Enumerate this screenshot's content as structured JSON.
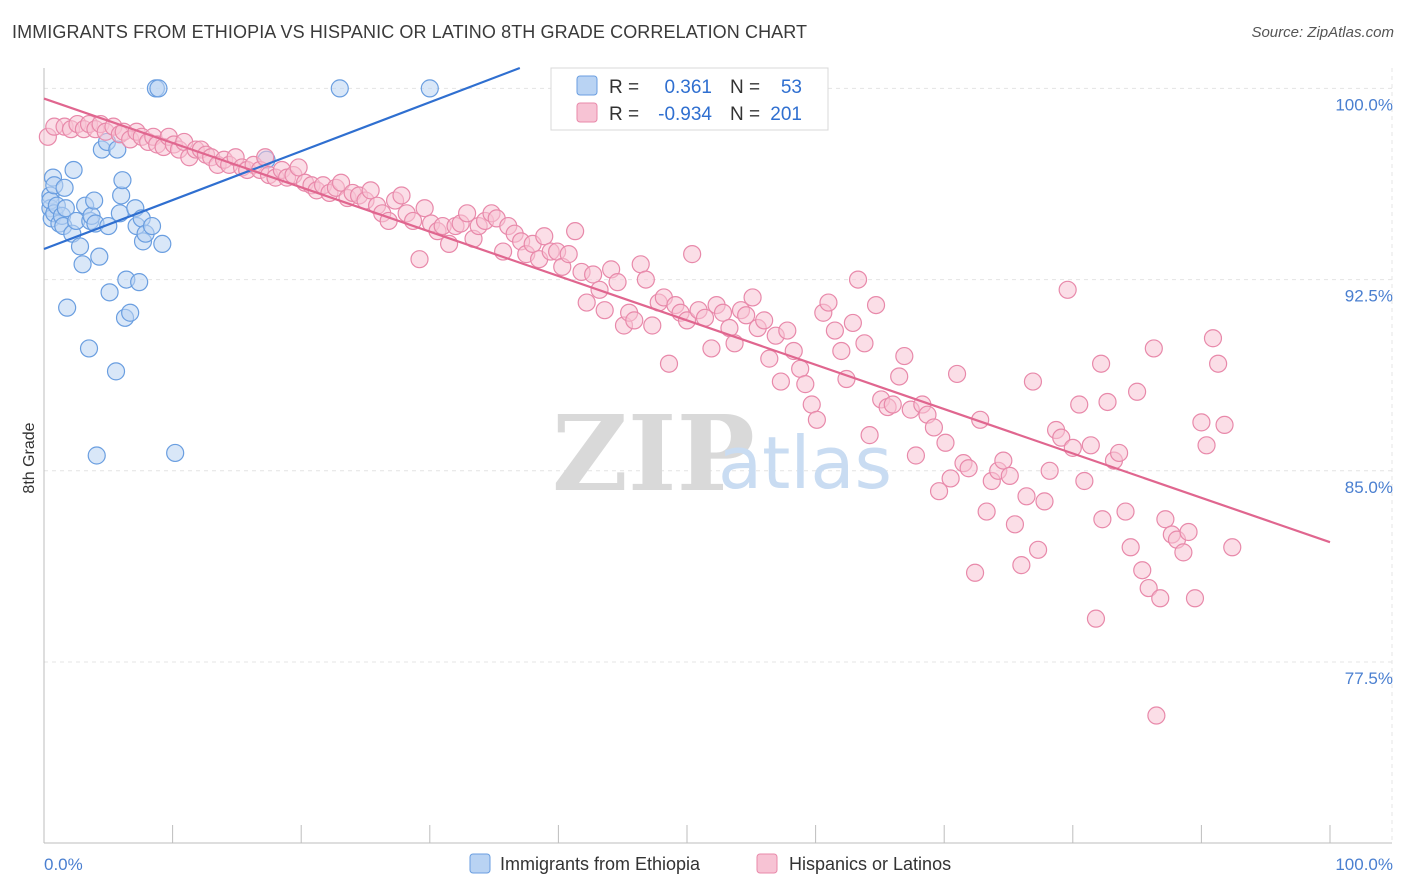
{
  "title": "IMMIGRANTS FROM ETHIOPIA VS HISPANIC OR LATINO 8TH GRADE CORRELATION CHART",
  "source": "Source: ZipAtlas.com",
  "watermark": {
    "zip": "ZIP",
    "atlas": "atlas"
  },
  "colors": {
    "blue_fill": "#b9d3f3",
    "blue_stroke": "#6a9ee0",
    "blue_line": "#2f6fd0",
    "pink_fill": "#f7c3d4",
    "pink_stroke": "#e889aa",
    "pink_line": "#e0668f",
    "tick_text": "#4a7fd0",
    "grid": "#e4e4e4"
  },
  "legend": {
    "rows": [
      {
        "r_label": "R =",
        "r_value": "0.361",
        "n_label": "N =",
        "n_value": "53"
      },
      {
        "r_label": "R =",
        "r_value": "-0.934",
        "n_label": "N =",
        "n_value": "201"
      }
    ],
    "placement": "top-center"
  },
  "bottom_legend": [
    "Immigrants from Ethiopia",
    "Hispanics or Latinos"
  ],
  "chart_data": {
    "type": "scatter",
    "title": "IMMIGRANTS FROM ETHIOPIA VS HISPANIC OR LATINO 8TH GRADE CORRELATION CHART",
    "xlabel": "",
    "ylabel": "8th Grade",
    "xlim": [
      0,
      100
    ],
    "ylim": [
      70.4,
      100.8
    ],
    "x_tick_labels": [
      "0.0%",
      "100.0%"
    ],
    "y_ticks": [
      {
        "value": 77.5,
        "label": "77.5%"
      },
      {
        "value": 85.0,
        "label": "85.0%"
      },
      {
        "value": 92.5,
        "label": "92.5%"
      },
      {
        "value": 100.0,
        "label": "100.0%"
      }
    ],
    "grid": true,
    "series": [
      {
        "name": "Immigrants from Ethiopia",
        "color": "#b9d3f3",
        "r": 0.361,
        "n": 53,
        "trend": {
          "x": [
            0.0,
            37.0
          ],
          "y": [
            93.7,
            100.8
          ]
        },
        "points": [
          [
            0.5,
            95.8
          ],
          [
            0.5,
            95.3
          ],
          [
            0.5,
            95.6
          ],
          [
            0.6,
            94.9
          ],
          [
            0.7,
            96.5
          ],
          [
            0.8,
            95.1
          ],
          [
            0.8,
            96.2
          ],
          [
            1.0,
            95.4
          ],
          [
            1.2,
            94.7
          ],
          [
            1.4,
            95.0
          ],
          [
            1.5,
            94.6
          ],
          [
            1.6,
            96.1
          ],
          [
            1.7,
            95.3
          ],
          [
            1.8,
            91.4
          ],
          [
            2.2,
            94.3
          ],
          [
            2.3,
            96.8
          ],
          [
            2.5,
            94.8
          ],
          [
            2.8,
            93.8
          ],
          [
            3.0,
            93.1
          ],
          [
            3.2,
            95.4
          ],
          [
            3.5,
            89.8
          ],
          [
            3.6,
            94.8
          ],
          [
            3.7,
            95.0
          ],
          [
            3.9,
            95.6
          ],
          [
            4.0,
            94.7
          ],
          [
            4.1,
            85.6
          ],
          [
            4.3,
            93.4
          ],
          [
            4.5,
            97.6
          ],
          [
            4.9,
            97.9
          ],
          [
            5.0,
            94.6
          ],
          [
            5.1,
            92.0
          ],
          [
            5.6,
            88.9
          ],
          [
            5.7,
            97.6
          ],
          [
            5.9,
            95.1
          ],
          [
            6.0,
            95.8
          ],
          [
            6.1,
            96.4
          ],
          [
            6.3,
            91.0
          ],
          [
            6.4,
            92.5
          ],
          [
            6.7,
            91.2
          ],
          [
            7.1,
            95.3
          ],
          [
            7.2,
            94.6
          ],
          [
            7.4,
            92.4
          ],
          [
            7.6,
            94.9
          ],
          [
            7.7,
            94.0
          ],
          [
            7.9,
            94.3
          ],
          [
            8.4,
            94.6
          ],
          [
            8.7,
            100.0
          ],
          [
            8.9,
            100.0
          ],
          [
            9.2,
            93.9
          ],
          [
            10.2,
            85.7
          ],
          [
            17.3,
            97.2
          ],
          [
            23.0,
            100.0
          ],
          [
            30.0,
            100.0
          ]
        ]
      },
      {
        "name": "Hispanics or Latinos",
        "color": "#f7c3d4",
        "r": -0.934,
        "n": 201,
        "trend": {
          "x": [
            0.0,
            100.0
          ],
          "y": [
            99.6,
            82.2
          ]
        },
        "points": [
          [
            0.3,
            98.1
          ],
          [
            0.8,
            98.5
          ],
          [
            1.6,
            98.5
          ],
          [
            2.1,
            98.4
          ],
          [
            2.6,
            98.6
          ],
          [
            3.1,
            98.4
          ],
          [
            3.5,
            98.6
          ],
          [
            4.0,
            98.4
          ],
          [
            4.4,
            98.6
          ],
          [
            4.8,
            98.3
          ],
          [
            5.4,
            98.5
          ],
          [
            5.9,
            98.2
          ],
          [
            6.2,
            98.3
          ],
          [
            6.7,
            98.0
          ],
          [
            7.2,
            98.3
          ],
          [
            7.6,
            98.1
          ],
          [
            8.1,
            97.9
          ],
          [
            8.5,
            98.1
          ],
          [
            8.8,
            97.8
          ],
          [
            9.3,
            97.7
          ],
          [
            9.7,
            98.1
          ],
          [
            10.1,
            97.8
          ],
          [
            10.5,
            97.6
          ],
          [
            10.9,
            97.9
          ],
          [
            11.3,
            97.3
          ],
          [
            11.8,
            97.6
          ],
          [
            12.2,
            97.6
          ],
          [
            12.6,
            97.4
          ],
          [
            13.0,
            97.3
          ],
          [
            13.5,
            97.0
          ],
          [
            14.0,
            97.2
          ],
          [
            14.4,
            97.0
          ],
          [
            14.9,
            97.3
          ],
          [
            15.4,
            96.9
          ],
          [
            15.8,
            96.8
          ],
          [
            16.3,
            97.0
          ],
          [
            16.8,
            96.8
          ],
          [
            17.2,
            97.3
          ],
          [
            17.5,
            96.6
          ],
          [
            18.0,
            96.5
          ],
          [
            18.5,
            96.8
          ],
          [
            18.9,
            96.5
          ],
          [
            19.4,
            96.6
          ],
          [
            19.8,
            96.9
          ],
          [
            20.3,
            96.3
          ],
          [
            20.8,
            96.2
          ],
          [
            21.2,
            96.0
          ],
          [
            21.7,
            96.2
          ],
          [
            22.2,
            95.9
          ],
          [
            22.7,
            96.1
          ],
          [
            23.1,
            96.3
          ],
          [
            23.6,
            95.7
          ],
          [
            24.0,
            95.9
          ],
          [
            24.5,
            95.8
          ],
          [
            25.0,
            95.6
          ],
          [
            25.4,
            96.0
          ],
          [
            25.9,
            95.4
          ],
          [
            26.3,
            95.1
          ],
          [
            26.8,
            94.8
          ],
          [
            27.3,
            95.6
          ],
          [
            27.8,
            95.8
          ],
          [
            28.2,
            95.1
          ],
          [
            28.7,
            94.8
          ],
          [
            29.2,
            93.3
          ],
          [
            29.6,
            95.3
          ],
          [
            30.1,
            94.7
          ],
          [
            30.6,
            94.4
          ],
          [
            31.0,
            94.6
          ],
          [
            31.5,
            93.9
          ],
          [
            32.0,
            94.6
          ],
          [
            32.4,
            94.7
          ],
          [
            32.9,
            95.1
          ],
          [
            33.4,
            94.1
          ],
          [
            33.8,
            94.6
          ],
          [
            34.3,
            94.8
          ],
          [
            34.8,
            95.1
          ],
          [
            35.2,
            94.9
          ],
          [
            35.7,
            93.6
          ],
          [
            36.1,
            94.6
          ],
          [
            36.6,
            94.3
          ],
          [
            37.1,
            94.0
          ],
          [
            37.5,
            93.5
          ],
          [
            38.0,
            93.9
          ],
          [
            38.5,
            93.3
          ],
          [
            38.9,
            94.2
          ],
          [
            39.4,
            93.6
          ],
          [
            39.9,
            93.6
          ],
          [
            40.3,
            93.0
          ],
          [
            40.8,
            93.5
          ],
          [
            41.3,
            94.4
          ],
          [
            41.8,
            92.8
          ],
          [
            42.2,
            91.6
          ],
          [
            42.7,
            92.7
          ],
          [
            43.2,
            92.1
          ],
          [
            43.6,
            91.3
          ],
          [
            44.1,
            92.9
          ],
          [
            44.6,
            92.4
          ],
          [
            45.1,
            90.7
          ],
          [
            45.5,
            91.2
          ],
          [
            45.9,
            90.9
          ],
          [
            46.4,
            93.1
          ],
          [
            46.8,
            92.5
          ],
          [
            47.3,
            90.7
          ],
          [
            47.8,
            91.6
          ],
          [
            48.2,
            91.8
          ],
          [
            48.6,
            89.2
          ],
          [
            49.1,
            91.5
          ],
          [
            49.5,
            91.2
          ],
          [
            50.0,
            90.9
          ],
          [
            50.4,
            93.5
          ],
          [
            50.9,
            91.3
          ],
          [
            51.4,
            91.0
          ],
          [
            51.9,
            89.8
          ],
          [
            52.3,
            91.5
          ],
          [
            52.8,
            91.2
          ],
          [
            53.3,
            90.6
          ],
          [
            53.7,
            90.0
          ],
          [
            54.2,
            91.3
          ],
          [
            54.6,
            91.1
          ],
          [
            55.1,
            91.8
          ],
          [
            55.5,
            90.6
          ],
          [
            56.0,
            90.9
          ],
          [
            56.4,
            89.4
          ],
          [
            56.9,
            90.3
          ],
          [
            57.3,
            88.5
          ],
          [
            57.8,
            90.5
          ],
          [
            58.3,
            89.7
          ],
          [
            58.8,
            89.0
          ],
          [
            59.2,
            88.4
          ],
          [
            59.7,
            87.6
          ],
          [
            60.1,
            87.0
          ],
          [
            60.6,
            91.2
          ],
          [
            61.0,
            91.6
          ],
          [
            61.5,
            90.5
          ],
          [
            62.0,
            89.7
          ],
          [
            62.4,
            88.6
          ],
          [
            62.9,
            90.8
          ],
          [
            63.3,
            92.5
          ],
          [
            63.8,
            90.0
          ],
          [
            64.2,
            86.4
          ],
          [
            64.7,
            91.5
          ],
          [
            65.1,
            87.8
          ],
          [
            65.6,
            87.5
          ],
          [
            66.0,
            87.6
          ],
          [
            66.5,
            88.7
          ],
          [
            66.9,
            89.5
          ],
          [
            67.4,
            87.4
          ],
          [
            67.8,
            85.6
          ],
          [
            68.3,
            87.6
          ],
          [
            68.7,
            87.2
          ],
          [
            69.2,
            86.7
          ],
          [
            69.6,
            84.2
          ],
          [
            70.1,
            86.1
          ],
          [
            70.5,
            84.7
          ],
          [
            71.0,
            88.8
          ],
          [
            71.5,
            85.3
          ],
          [
            71.9,
            85.1
          ],
          [
            72.4,
            81.0
          ],
          [
            72.8,
            87.0
          ],
          [
            73.3,
            83.4
          ],
          [
            73.7,
            84.6
          ],
          [
            74.2,
            85.0
          ],
          [
            74.6,
            85.4
          ],
          [
            75.1,
            84.8
          ],
          [
            75.5,
            82.9
          ],
          [
            76.0,
            81.3
          ],
          [
            76.4,
            84.0
          ],
          [
            76.9,
            88.5
          ],
          [
            77.3,
            81.9
          ],
          [
            77.8,
            83.8
          ],
          [
            78.2,
            85.0
          ],
          [
            78.7,
            86.6
          ],
          [
            79.1,
            86.3
          ],
          [
            79.6,
            92.1
          ],
          [
            80.0,
            85.9
          ],
          [
            80.5,
            87.6
          ],
          [
            80.9,
            84.6
          ],
          [
            81.4,
            86.0
          ],
          [
            81.8,
            79.2
          ],
          [
            82.3,
            83.1
          ],
          [
            82.7,
            87.7
          ],
          [
            83.2,
            85.4
          ],
          [
            83.6,
            85.7
          ],
          [
            84.1,
            83.4
          ],
          [
            84.5,
            82.0
          ],
          [
            85.0,
            88.1
          ],
          [
            85.4,
            81.1
          ],
          [
            85.9,
            80.4
          ],
          [
            86.3,
            89.8
          ],
          [
            86.8,
            80.0
          ],
          [
            87.2,
            83.1
          ],
          [
            87.7,
            82.5
          ],
          [
            88.1,
            82.3
          ],
          [
            88.6,
            81.8
          ],
          [
            89.0,
            82.6
          ],
          [
            89.5,
            80.0
          ],
          [
            90.0,
            86.9
          ],
          [
            90.4,
            86.0
          ],
          [
            90.9,
            90.2
          ],
          [
            91.3,
            89.2
          ],
          [
            91.8,
            86.8
          ],
          [
            92.4,
            82.0
          ],
          [
            86.5,
            75.4
          ],
          [
            82.2,
            89.2
          ]
        ]
      }
    ]
  }
}
